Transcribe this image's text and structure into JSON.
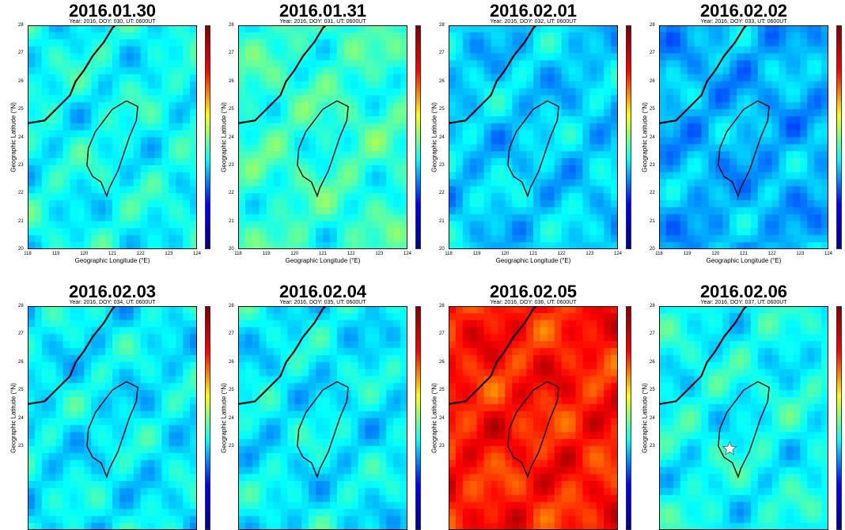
{
  "chart_data": {
    "type": "heatmap",
    "axes": {
      "xlabel": "Geographic Longitude (°E)",
      "ylabel": "Geographic Latitude (°N)",
      "xlim": [
        118,
        124
      ],
      "ylim": [
        20,
        28
      ],
      "xticks": [
        "118",
        "119",
        "120",
        "121",
        "122",
        "123",
        "124"
      ],
      "yticks": [
        "20",
        "21",
        "22",
        "23",
        "24",
        "25",
        "26",
        "27",
        "28"
      ]
    },
    "panels": [
      {
        "title": "2016.01.30",
        "subtitle": "Year: 2016, DOY: 030, UT: 0600UT",
        "level": 0.38
      },
      {
        "title": "2016.01.31",
        "subtitle": "Year: 2016, DOY: 031, UT: 0600UT",
        "level": 0.42
      },
      {
        "title": "2016.02.01",
        "subtitle": "Year: 2016, DOY: 032, UT: 0600UT",
        "level": 0.33
      },
      {
        "title": "2016.02.02",
        "subtitle": "Year: 2016, DOY: 033, UT: 0600UT",
        "level": 0.3
      },
      {
        "title": "2016.02.03",
        "subtitle": "Year: 2016, DOY: 034, UT: 0600UT",
        "level": 0.36
      },
      {
        "title": "2016.02.04",
        "subtitle": "Year: 2016, DOY: 035, UT: 0600UT",
        "level": 0.36
      },
      {
        "title": "2016.02.05",
        "subtitle": "Year: 2016, DOY: 036, UT: 0600UT",
        "level": 0.85
      },
      {
        "title": "2016.02.06",
        "subtitle": "Year: 2016, DOY: 037, UT: 0600UT",
        "level": 0.38,
        "marker": "star",
        "marker_lon": 120.5,
        "marker_lat": 22.9
      }
    ]
  }
}
